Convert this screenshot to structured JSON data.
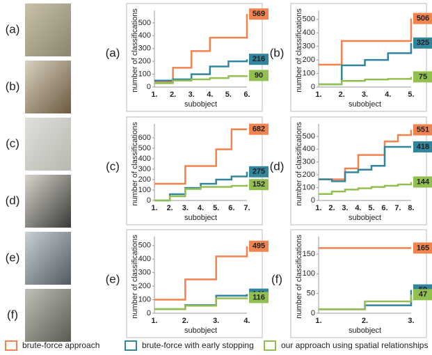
{
  "chart_data": [
    {
      "type": "step",
      "label": "(a)",
      "x_label": "subobject",
      "y_label": "number of classifications",
      "categories": [
        "1.",
        "2.",
        "3.",
        "4.",
        "5.",
        "6."
      ],
      "ylim": [
        0,
        570
      ],
      "yticks": [
        0,
        100,
        200,
        300,
        400,
        500
      ],
      "series": [
        {
          "name": "brute-force approach",
          "color": "#f0834e",
          "values": [
            40,
            150,
            280,
            385,
            385,
            569
          ]
        },
        {
          "name": "brute-force with early stopping",
          "color": "#31859c",
          "values": [
            50,
            60,
            100,
            160,
            200,
            216
          ]
        },
        {
          "name": "our approach using spatial relationships",
          "color": "#92c050",
          "values": [
            30,
            50,
            60,
            70,
            85,
            90
          ]
        }
      ]
    },
    {
      "type": "step",
      "label": "(b)",
      "x_label": "subobject",
      "y_label": "number of classifications",
      "categories": [
        "1.",
        "2.",
        "3.",
        "4.",
        "5."
      ],
      "ylim": [
        0,
        540
      ],
      "yticks": [
        0,
        100,
        200,
        300,
        400,
        500
      ],
      "series": [
        {
          "name": "brute-force approach",
          "color": "#f0834e",
          "values": [
            165,
            340,
            340,
            340,
            506
          ]
        },
        {
          "name": "brute-force with early stopping",
          "color": "#31859c",
          "values": [
            20,
            160,
            200,
            250,
            325
          ]
        },
        {
          "name": "our approach using spatial relationships",
          "color": "#92c050",
          "values": [
            20,
            45,
            55,
            60,
            75
          ]
        }
      ]
    },
    {
      "type": "step",
      "label": "(c)",
      "x_label": "subobject",
      "y_label": "number of classifications",
      "categories": [
        "1.",
        "2.",
        "3.",
        "4.",
        "5.",
        "6.",
        "7."
      ],
      "ylim": [
        0,
        700
      ],
      "yticks": [
        0,
        100,
        200,
        300,
        400,
        500,
        600
      ],
      "series": [
        {
          "name": "brute-force approach",
          "color": "#f0834e",
          "values": [
            160,
            160,
            330,
            330,
            490,
            682,
            682
          ]
        },
        {
          "name": "brute-force with early stopping",
          "color": "#31859c",
          "values": [
            0,
            60,
            120,
            160,
            200,
            230,
            275
          ]
        },
        {
          "name": "our approach using spatial relationships",
          "color": "#92c050",
          "values": [
            0,
            40,
            110,
            130,
            130,
            140,
            152
          ]
        }
      ]
    },
    {
      "type": "step",
      "label": "(d)",
      "x_label": "subobject",
      "y_label": "number of classifications",
      "categories": [
        "1.",
        "2.",
        "3.",
        "4.",
        "5.",
        "6.",
        "7.",
        "8."
      ],
      "ylim": [
        0,
        570
      ],
      "yticks": [
        0,
        100,
        200,
        300,
        400,
        500
      ],
      "series": [
        {
          "name": "brute-force approach",
          "color": "#f0834e",
          "values": [
            165,
            165,
            250,
            355,
            355,
            460,
            510,
            551
          ]
        },
        {
          "name": "brute-force with early stopping",
          "color": "#31859c",
          "values": [
            165,
            150,
            220,
            240,
            270,
            418,
            418,
            418
          ]
        },
        {
          "name": "our approach using spatial relationships",
          "color": "#92c050",
          "values": [
            50,
            70,
            85,
            95,
            105,
            115,
            125,
            144
          ]
        }
      ]
    },
    {
      "type": "step",
      "label": "(e)",
      "x_label": "subobject",
      "y_label": "number of classifications",
      "categories": [
        "1.",
        "2.",
        "3.",
        "4."
      ],
      "ylim": [
        0,
        540
      ],
      "yticks": [
        0,
        100,
        200,
        300,
        400,
        500
      ],
      "series": [
        {
          "name": "brute-force approach",
          "color": "#f0834e",
          "values": [
            100,
            250,
            420,
            495
          ]
        },
        {
          "name": "brute-force with early stopping",
          "color": "#31859c",
          "values": [
            30,
            60,
            130,
            141
          ]
        },
        {
          "name": "our approach using spatial relationships",
          "color": "#92c050",
          "values": [
            30,
            55,
            110,
            116
          ]
        }
      ]
    },
    {
      "type": "step",
      "label": "(f)",
      "x_label": "subobject",
      "y_label": "number of classifications",
      "categories": [
        "1.",
        "2.",
        "3."
      ],
      "ylim": [
        0,
        185
      ],
      "yticks": [
        0,
        50,
        100,
        150
      ],
      "series": [
        {
          "name": "brute-force approach",
          "color": "#f0834e",
          "values": [
            165,
            165,
            165
          ]
        },
        {
          "name": "brute-force with early stopping",
          "color": "#31859c",
          "values": [
            10,
            20,
            59
          ]
        },
        {
          "name": "our approach using spatial relationships",
          "color": "#92c050",
          "values": [
            10,
            30,
            47
          ]
        }
      ]
    }
  ]
}
